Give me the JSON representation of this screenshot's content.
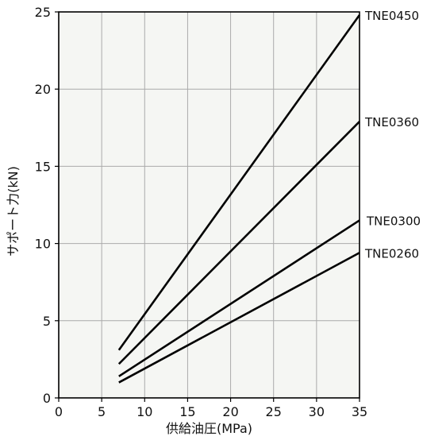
{
  "chart_data": {
    "type": "line",
    "xlabel": "供給油圧(MPa)",
    "ylabel": "サポート力(kN)",
    "xlim": [
      0,
      35
    ],
    "ylim": [
      0,
      25
    ],
    "xticks": [
      0,
      5,
      10,
      15,
      20,
      25,
      30,
      35
    ],
    "yticks": [
      0,
      5,
      10,
      15,
      20,
      25
    ],
    "grid": true,
    "legend": "direct labels at right end of each line",
    "colors": {
      "line": "#000000",
      "plot_background": "#f5f6f3",
      "grid": "#aaaaaa"
    },
    "series": [
      {
        "name": "TNE0450",
        "x": [
          7,
          35
        ],
        "y": [
          3.1,
          24.8
        ]
      },
      {
        "name": "TNE0360",
        "x": [
          7,
          35
        ],
        "y": [
          2.2,
          17.9
        ]
      },
      {
        "name": "TNE0300",
        "x": [
          7,
          35
        ],
        "y": [
          1.4,
          11.5
        ]
      },
      {
        "name": "TNE0260",
        "x": [
          7,
          35
        ],
        "y": [
          1.0,
          9.4
        ]
      }
    ]
  }
}
